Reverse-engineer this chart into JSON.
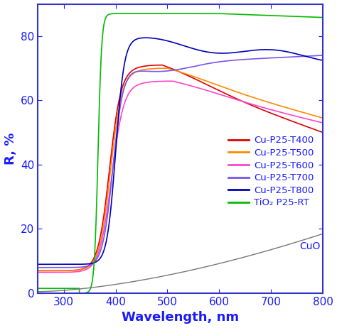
{
  "xlim": [
    250,
    800
  ],
  "ylim": [
    0,
    90
  ],
  "xlabel": "Wavelength, nm",
  "ylabel": "R, %",
  "xlabel_color": "#1a1aff",
  "ylabel_color": "#1a1aff",
  "tick_color": "#1a1aff",
  "spine_color": "#3333cc",
  "background_color": "#ffffff",
  "legend_label_color": "#1a1aff",
  "series": [
    {
      "label": "Cu-P25-T400",
      "color": "#dd0000",
      "type": "T400"
    },
    {
      "label": "Cu-P25-T500",
      "color": "#ff8800",
      "type": "T500"
    },
    {
      "label": "Cu-P25-T600",
      "color": "#ff44cc",
      "type": "T600"
    },
    {
      "label": "Cu-P25-T700",
      "color": "#7755ee",
      "type": "T700"
    },
    {
      "label": "Cu-P25-T800",
      "color": "#0000bb",
      "type": "T800"
    },
    {
      "label": "TiO₂ P25-RT",
      "color": "#00bb00",
      "type": "TiO2"
    },
    {
      "label": "CuO",
      "color": "#777777",
      "type": "CuO"
    }
  ],
  "xticks": [
    300,
    400,
    500,
    600,
    700,
    800
  ],
  "yticks": [
    0,
    20,
    40,
    60,
    80
  ],
  "figsize": [
    4.74,
    4.62
  ],
  "dpi": 100
}
